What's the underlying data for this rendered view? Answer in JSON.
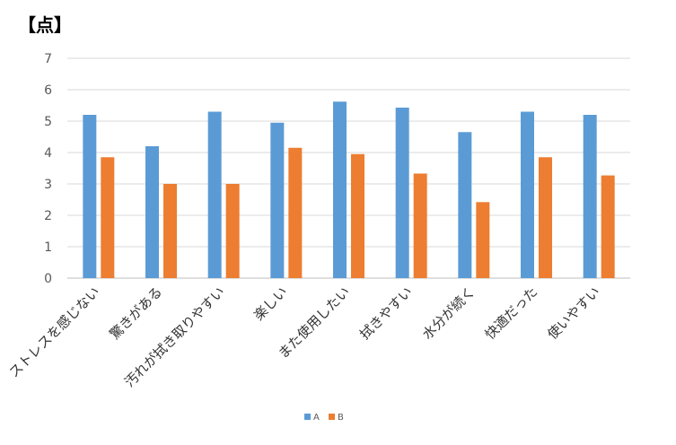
{
  "chart_data": {
    "type": "bar",
    "title": "",
    "unit_label": "【点】",
    "xlabel": "",
    "ylabel": "",
    "categories": [
      "ストレスを感じない",
      "驚きがある",
      "汚れが拭き取りやすい",
      "楽しい",
      "また使用したい",
      "拭きやすい",
      "水分が続く",
      "快適だった",
      "使いやすい"
    ],
    "series": [
      {
        "name": "A",
        "color": "#5B9BD5",
        "values": [
          5.2,
          4.2,
          5.3,
          4.95,
          5.62,
          5.43,
          4.65,
          5.3,
          5.2
        ]
      },
      {
        "name": "B",
        "color": "#ED7D31",
        "values": [
          3.85,
          3.0,
          3.0,
          4.15,
          3.95,
          3.33,
          2.42,
          3.85,
          3.27
        ]
      }
    ],
    "ylim": [
      0,
      7
    ],
    "yticks": [
      "0",
      "1",
      "2",
      "3",
      "4",
      "5",
      "6",
      "7"
    ],
    "grid": true,
    "legend_position": "bottom"
  }
}
